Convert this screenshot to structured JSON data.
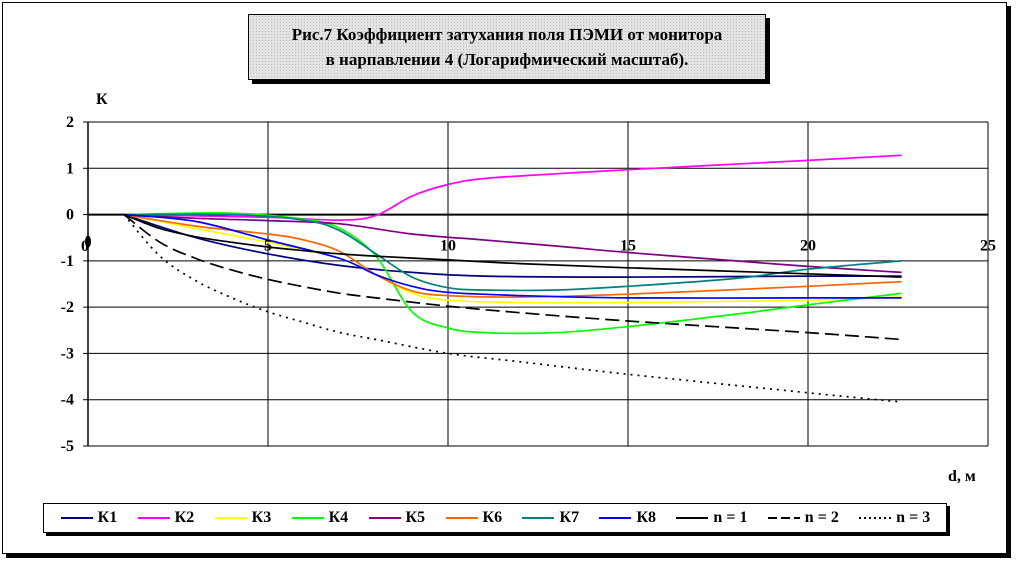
{
  "title_line1": "Рис.7 Коэффициент затухания поля ПЭМИ от монитора",
  "title_line2": "в нарпавлении 4 (Логарифмический масштаб).",
  "chart_data": {
    "type": "line",
    "title": "Рис.7 Коэффициент затухания поля ПЭМИ от монитора в нарпавлении 4 (Логарифмический масштаб).",
    "xlabel": "d, м",
    "ylabel": "К",
    "xlim": [
      0,
      25
    ],
    "ylim": [
      -5,
      2
    ],
    "x_ticks": [
      "5",
      "10",
      "15",
      "20",
      "25"
    ],
    "y_ticks": [
      "2",
      "1",
      "0",
      "-1",
      "-2",
      "-3",
      "-4",
      "-5"
    ],
    "origin_label": "0",
    "grid": true,
    "legend_position": "bottom",
    "series": [
      {
        "name": "К1",
        "color": "#000080",
        "dash": "solid",
        "points": [
          [
            1,
            0
          ],
          [
            3,
            -0.5
          ],
          [
            5,
            -0.85
          ],
          [
            7,
            -1.1
          ],
          [
            9,
            -1.25
          ],
          [
            11,
            -1.33
          ],
          [
            15,
            -1.35
          ],
          [
            20,
            -1.33
          ],
          [
            22.6,
            -1.33
          ]
        ]
      },
      {
        "name": "К2",
        "color": "#ff00ff",
        "dash": "solid",
        "points": [
          [
            1,
            0
          ],
          [
            5,
            -0.06
          ],
          [
            7,
            -0.12
          ],
          [
            8,
            -0.02
          ],
          [
            9,
            0.4
          ],
          [
            10,
            0.65
          ],
          [
            11,
            0.78
          ],
          [
            13,
            0.88
          ],
          [
            15,
            0.97
          ],
          [
            20,
            1.17
          ],
          [
            22.6,
            1.28
          ]
        ]
      },
      {
        "name": "К3",
        "color": "#ffff00",
        "dash": "solid",
        "points": [
          [
            1,
            0
          ],
          [
            3,
            -0.3
          ],
          [
            5,
            -0.6
          ],
          [
            7,
            -0.95
          ],
          [
            8,
            -1.3
          ],
          [
            9,
            -1.7
          ],
          [
            10,
            -1.85
          ],
          [
            12,
            -1.9
          ],
          [
            15,
            -1.9
          ],
          [
            20,
            -1.85
          ],
          [
            22.6,
            -1.78
          ]
        ]
      },
      {
        "name": "К4",
        "color": "#00ff00",
        "dash": "solid",
        "points": [
          [
            1,
            0
          ],
          [
            4,
            0.03
          ],
          [
            6,
            -0.1
          ],
          [
            7,
            -0.3
          ],
          [
            8,
            -0.9
          ],
          [
            9,
            -2.1
          ],
          [
            10,
            -2.45
          ],
          [
            11,
            -2.55
          ],
          [
            13,
            -2.55
          ],
          [
            15,
            -2.42
          ],
          [
            18,
            -2.15
          ],
          [
            20,
            -1.95
          ],
          [
            22.6,
            -1.7
          ]
        ]
      },
      {
        "name": "К5",
        "color": "#800080",
        "dash": "solid",
        "points": [
          [
            1,
            0
          ],
          [
            3,
            -0.08
          ],
          [
            5,
            -0.13
          ],
          [
            7,
            -0.2
          ],
          [
            9,
            -0.42
          ],
          [
            11,
            -0.55
          ],
          [
            13,
            -0.68
          ],
          [
            15,
            -0.82
          ],
          [
            18,
            -1.0
          ],
          [
            20,
            -1.12
          ],
          [
            22.6,
            -1.25
          ]
        ]
      },
      {
        "name": "К6",
        "color": "#ff6600",
        "dash": "solid",
        "points": [
          [
            1,
            0
          ],
          [
            3,
            -0.25
          ],
          [
            5,
            -0.42
          ],
          [
            6,
            -0.55
          ],
          [
            7,
            -0.8
          ],
          [
            8,
            -1.3
          ],
          [
            9,
            -1.65
          ],
          [
            10,
            -1.75
          ],
          [
            12,
            -1.78
          ],
          [
            15,
            -1.72
          ],
          [
            20,
            -1.55
          ],
          [
            22.6,
            -1.45
          ]
        ]
      },
      {
        "name": "К7",
        "color": "#008080",
        "dash": "solid",
        "points": [
          [
            1,
            0
          ],
          [
            4,
            0.0
          ],
          [
            6,
            -0.12
          ],
          [
            7,
            -0.35
          ],
          [
            8,
            -0.85
          ],
          [
            9,
            -1.35
          ],
          [
            10,
            -1.58
          ],
          [
            11,
            -1.63
          ],
          [
            13,
            -1.63
          ],
          [
            15,
            -1.55
          ],
          [
            18,
            -1.38
          ],
          [
            20,
            -1.18
          ],
          [
            22.6,
            -1.0
          ]
        ]
      },
      {
        "name": "К8",
        "color": "#0000ff",
        "dash": "solid",
        "points": [
          [
            1,
            0
          ],
          [
            3,
            -0.15
          ],
          [
            5,
            -0.55
          ],
          [
            7,
            -0.95
          ],
          [
            8,
            -1.3
          ],
          [
            9,
            -1.55
          ],
          [
            10,
            -1.68
          ],
          [
            12,
            -1.75
          ],
          [
            15,
            -1.8
          ],
          [
            20,
            -1.8
          ],
          [
            22.6,
            -1.8
          ]
        ]
      },
      {
        "name": "n = 1",
        "color": "#000000",
        "dash": "solid",
        "points": [
          [
            1,
            0
          ],
          [
            2,
            -0.3
          ],
          [
            3,
            -0.48
          ],
          [
            4,
            -0.6
          ],
          [
            5,
            -0.7
          ],
          [
            6,
            -0.78
          ],
          [
            7,
            -0.85
          ],
          [
            8,
            -0.9
          ],
          [
            10,
            -0.98
          ],
          [
            12,
            -1.06
          ],
          [
            15,
            -1.15
          ],
          [
            20,
            -1.28
          ],
          [
            22.6,
            -1.35
          ]
        ]
      },
      {
        "name": "n = 2",
        "color": "#000000",
        "dash": "dashed",
        "points": [
          [
            1,
            0
          ],
          [
            2,
            -0.6
          ],
          [
            3,
            -0.95
          ],
          [
            4,
            -1.2
          ],
          [
            5,
            -1.4
          ],
          [
            6,
            -1.56
          ],
          [
            7,
            -1.7
          ],
          [
            8,
            -1.8
          ],
          [
            10,
            -1.98
          ],
          [
            12,
            -2.12
          ],
          [
            15,
            -2.3
          ],
          [
            20,
            -2.55
          ],
          [
            22.6,
            -2.7
          ]
        ]
      },
      {
        "name": "n = 3",
        "color": "#000000",
        "dash": "dotted",
        "points": [
          [
            1,
            0
          ],
          [
            2,
            -0.9
          ],
          [
            3,
            -1.43
          ],
          [
            4,
            -1.8
          ],
          [
            5,
            -2.1
          ],
          [
            6,
            -2.33
          ],
          [
            7,
            -2.55
          ],
          [
            8,
            -2.7
          ],
          [
            10,
            -3.0
          ],
          [
            12,
            -3.18
          ],
          [
            15,
            -3.45
          ],
          [
            20,
            -3.85
          ],
          [
            22.6,
            -4.05
          ]
        ]
      }
    ]
  }
}
